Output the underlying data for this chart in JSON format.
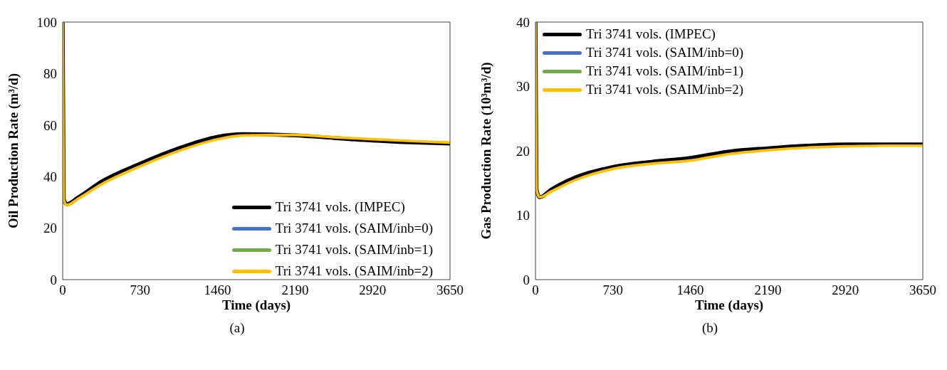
{
  "chart_data": [
    {
      "type": "line",
      "xlabel": "Time (days)",
      "ylabel": "Oil Production Rate (m³/d)",
      "annotations": [
        "(a)"
      ],
      "xlim": [
        0,
        3650
      ],
      "xticks": [
        0,
        730,
        1460,
        2190,
        2920,
        3650
      ],
      "ylim": [
        0,
        100
      ],
      "yticks": [
        0,
        20,
        40,
        60,
        80,
        100
      ],
      "legend": "bottom right",
      "marker": "none",
      "line_style": "solid",
      "x": [
        0,
        10,
        40,
        150,
        365,
        730,
        1095,
        1460,
        1700,
        2190,
        2555,
        2920,
        3285,
        3650
      ],
      "series": [
        {
          "name": "Tri 3741 vols. (IMPEC)",
          "color": "#000000",
          "values": [
            100,
            31,
            29.3,
            32,
            38,
            45,
            51,
            55.5,
            56.5,
            56,
            55,
            54,
            53.3,
            52.8
          ]
        },
        {
          "name": "Tri 3741 vols. (SAIM/inb=0)",
          "color": "#4472c4",
          "values": [
            null,
            null,
            null,
            null,
            null,
            null,
            null,
            null,
            null,
            null,
            null,
            null,
            null,
            null
          ]
        },
        {
          "name": "Tri 3741 vols. (SAIM/inb=1)",
          "color": "#70ad47",
          "values": [
            null,
            null,
            null,
            null,
            null,
            null,
            null,
            null,
            null,
            null,
            null,
            null,
            null,
            null
          ]
        },
        {
          "name": "Tri 3741 vols. (SAIM/inb=2)",
          "color": "#ffc000",
          "values": [
            100,
            31,
            29,
            31.5,
            37,
            44,
            50,
            54.5,
            56,
            56.2,
            55.3,
            54.5,
            53.8,
            53.2
          ]
        }
      ]
    },
    {
      "type": "line",
      "xlabel": "Time (days)",
      "ylabel": "Gas Production Rate (10³m³/d)",
      "annotations": [
        "(b)"
      ],
      "xlim": [
        0,
        3650
      ],
      "xticks": [
        0,
        730,
        1460,
        2190,
        2920,
        3650
      ],
      "ylim": [
        0,
        40
      ],
      "yticks": [
        0,
        10,
        20,
        30,
        40
      ],
      "legend": "top left",
      "marker": "none",
      "line_style": "solid",
      "x": [
        0,
        10,
        40,
        150,
        365,
        730,
        1095,
        1460,
        1825,
        2190,
        2555,
        2920,
        3285,
        3650
      ],
      "series": [
        {
          "name": "Tri 3741 vols. (IMPEC)",
          "color": "#000000",
          "values": [
            40,
            14,
            12.8,
            14,
            15.8,
            17.5,
            18.3,
            18.9,
            19.9,
            20.4,
            20.8,
            21,
            21,
            21
          ]
        },
        {
          "name": "Tri 3741 vols. (SAIM/inb=0)",
          "color": "#4472c4",
          "values": [
            null,
            null,
            null,
            null,
            null,
            null,
            null,
            null,
            null,
            null,
            null,
            null,
            null,
            null
          ]
        },
        {
          "name": "Tri 3741 vols. (SAIM/inb=1)",
          "color": "#70ad47",
          "values": [
            null,
            null,
            null,
            null,
            null,
            null,
            null,
            null,
            null,
            null,
            null,
            null,
            null,
            null
          ]
        },
        {
          "name": "Tri 3741 vols. (SAIM/inb=2)",
          "color": "#ffc000",
          "values": [
            40,
            14,
            12.8,
            13.7,
            15.4,
            17.2,
            18,
            18.5,
            19.5,
            20.1,
            20.5,
            20.7,
            20.8,
            20.8
          ]
        }
      ]
    }
  ]
}
